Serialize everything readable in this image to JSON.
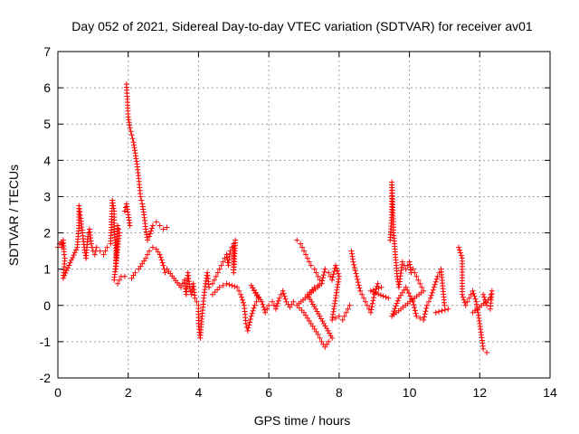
{
  "chart_data": {
    "type": "scatter",
    "title": "Day 052 of 2021, Sidereal Day-to-day VTEC variation (SDTVAR) for receiver av01",
    "xlabel": "GPS time / hours",
    "ylabel": "SDTVAR / TECUs",
    "xlim": [
      0,
      14
    ],
    "ylim": [
      -2,
      7
    ],
    "x_ticks": [
      0,
      2,
      4,
      6,
      8,
      10,
      12,
      14
    ],
    "y_ticks": [
      -2,
      -1,
      0,
      1,
      2,
      3,
      4,
      5,
      6,
      7
    ],
    "grid": true,
    "marker": "+",
    "color": "#ff0000",
    "series": [
      {
        "name": "SDTVAR",
        "points": [
          [
            0.0,
            1.6
          ],
          [
            0.05,
            1.7
          ],
          [
            0.1,
            1.75
          ],
          [
            0.12,
            1.6
          ],
          [
            0.15,
            1.8
          ],
          [
            0.18,
            1.4
          ],
          [
            0.2,
            1.3
          ],
          [
            0.15,
            0.75
          ],
          [
            0.55,
            1.6
          ],
          [
            0.6,
            2.2
          ],
          [
            0.6,
            2.75
          ],
          [
            0.65,
            2.4
          ],
          [
            0.7,
            2.0
          ],
          [
            0.75,
            1.6
          ],
          [
            0.8,
            1.3
          ],
          [
            0.85,
            1.9
          ],
          [
            0.9,
            2.1
          ],
          [
            0.95,
            1.7
          ],
          [
            1.0,
            1.5
          ],
          [
            1.05,
            1.4
          ],
          [
            1.1,
            1.6
          ],
          [
            1.2,
            1.5
          ],
          [
            1.3,
            1.4
          ],
          [
            1.4,
            1.6
          ],
          [
            1.5,
            1.7
          ],
          [
            1.55,
            2.9
          ],
          [
            1.6,
            2.6
          ],
          [
            1.6,
            2.1
          ],
          [
            1.65,
            1.5
          ],
          [
            1.65,
            1.0
          ],
          [
            1.7,
            2.2
          ],
          [
            1.75,
            2.0
          ],
          [
            1.6,
            0.7
          ],
          [
            1.7,
            0.6
          ],
          [
            1.8,
            0.8
          ],
          [
            1.9,
            0.8
          ],
          [
            1.9,
            2.6
          ],
          [
            1.95,
            2.8
          ],
          [
            2.0,
            2.5
          ],
          [
            2.05,
            2.2
          ],
          [
            1.95,
            6.1
          ],
          [
            1.98,
            5.6
          ],
          [
            2.0,
            5.2
          ],
          [
            2.05,
            4.9
          ],
          [
            2.1,
            4.7
          ],
          [
            2.15,
            4.5
          ],
          [
            2.2,
            4.2
          ],
          [
            2.25,
            3.9
          ],
          [
            2.3,
            3.5
          ],
          [
            2.35,
            3.0
          ],
          [
            2.4,
            2.8
          ],
          [
            2.45,
            2.5
          ],
          [
            2.5,
            2.1
          ],
          [
            2.55,
            1.8
          ],
          [
            2.6,
            1.9
          ],
          [
            2.7,
            2.2
          ],
          [
            2.8,
            2.3
          ],
          [
            2.9,
            2.2
          ],
          [
            3.0,
            2.1
          ],
          [
            3.1,
            2.15
          ],
          [
            2.1,
            0.75
          ],
          [
            2.2,
            0.9
          ],
          [
            2.3,
            1.0
          ],
          [
            2.4,
            1.15
          ],
          [
            2.5,
            1.3
          ],
          [
            2.6,
            1.5
          ],
          [
            2.7,
            1.6
          ],
          [
            2.8,
            1.55
          ],
          [
            2.9,
            1.4
          ],
          [
            3.0,
            1.1
          ],
          [
            3.05,
            0.9
          ],
          [
            3.1,
            1.0
          ],
          [
            3.5,
            0.5
          ],
          [
            3.6,
            0.7
          ],
          [
            3.65,
            0.3
          ],
          [
            3.7,
            0.9
          ],
          [
            3.75,
            0.5
          ],
          [
            3.8,
            0.3
          ],
          [
            3.85,
            0.6
          ],
          [
            3.9,
            0.2
          ],
          [
            4.0,
            0.0
          ],
          [
            4.0,
            -0.5
          ],
          [
            4.05,
            -0.9
          ],
          [
            4.1,
            -0.3
          ],
          [
            4.15,
            0.2
          ],
          [
            4.2,
            0.6
          ],
          [
            4.25,
            0.9
          ],
          [
            4.3,
            0.5
          ],
          [
            4.4,
            0.6
          ],
          [
            4.5,
            0.8
          ],
          [
            4.6,
            1.0
          ],
          [
            4.7,
            1.2
          ],
          [
            4.8,
            1.4
          ],
          [
            4.85,
            1.1
          ],
          [
            4.9,
            1.5
          ],
          [
            5.0,
            1.7
          ],
          [
            5.0,
            0.9
          ],
          [
            5.05,
            1.8
          ],
          [
            4.4,
            0.3
          ],
          [
            4.6,
            0.5
          ],
          [
            4.8,
            0.6
          ],
          [
            5.1,
            0.5
          ],
          [
            5.2,
            0.3
          ],
          [
            5.3,
            0.0
          ],
          [
            5.35,
            -0.5
          ],
          [
            5.4,
            -0.7
          ],
          [
            5.5,
            -0.3
          ],
          [
            5.6,
            0.0
          ],
          [
            5.7,
            0.2
          ],
          [
            5.5,
            0.55
          ],
          [
            5.8,
            0.1
          ],
          [
            5.9,
            -0.2
          ],
          [
            6.0,
            0.0
          ],
          [
            6.1,
            0.1
          ],
          [
            6.2,
            -0.1
          ],
          [
            6.3,
            0.2
          ],
          [
            6.4,
            0.4
          ],
          [
            6.5,
            0.1
          ],
          [
            6.6,
            -0.05
          ],
          [
            6.7,
            0.1
          ],
          [
            6.8,
            1.8
          ],
          [
            6.9,
            1.7
          ],
          [
            7.0,
            1.5
          ],
          [
            7.1,
            1.3
          ],
          [
            7.2,
            1.1
          ],
          [
            7.3,
            1.0
          ],
          [
            7.4,
            0.8
          ],
          [
            7.5,
            0.6
          ],
          [
            6.8,
            0.0
          ],
          [
            7.0,
            -0.2
          ],
          [
            7.2,
            -0.5
          ],
          [
            7.4,
            -0.8
          ],
          [
            7.5,
            -1.0
          ],
          [
            7.6,
            -1.15
          ],
          [
            7.7,
            -1.0
          ],
          [
            7.8,
            -0.9
          ],
          [
            7.1,
            0.3
          ],
          [
            7.3,
            0.5
          ],
          [
            7.5,
            0.6
          ],
          [
            7.6,
            1.0
          ],
          [
            7.7,
            0.9
          ],
          [
            7.8,
            0.7
          ],
          [
            7.9,
            1.1
          ],
          [
            8.0,
            0.8
          ],
          [
            7.8,
            -0.4
          ],
          [
            8.0,
            -0.3
          ],
          [
            8.1,
            -0.4
          ],
          [
            8.2,
            -0.2
          ],
          [
            8.3,
            0.0
          ],
          [
            8.35,
            1.5
          ],
          [
            8.4,
            1.2
          ],
          [
            8.5,
            0.8
          ],
          [
            8.6,
            0.4
          ],
          [
            8.7,
            0.2
          ],
          [
            8.8,
            0.0
          ],
          [
            8.9,
            -0.2
          ],
          [
            9.0,
            0.3
          ],
          [
            9.1,
            0.6
          ],
          [
            9.2,
            0.5
          ],
          [
            8.9,
            0.4
          ],
          [
            9.4,
            0.2
          ],
          [
            9.45,
            1.8
          ],
          [
            9.5,
            2.5
          ],
          [
            9.5,
            3.4
          ],
          [
            9.55,
            2.0
          ],
          [
            9.6,
            1.4
          ],
          [
            9.65,
            0.8
          ],
          [
            9.7,
            0.5
          ],
          [
            9.8,
            1.2
          ],
          [
            9.9,
            1.0
          ],
          [
            10.0,
            1.2
          ],
          [
            10.05,
            0.9
          ],
          [
            10.1,
            1.0
          ],
          [
            10.2,
            0.8
          ],
          [
            10.3,
            0.6
          ],
          [
            10.4,
            0.4
          ],
          [
            9.5,
            -0.3
          ],
          [
            9.7,
            0.2
          ],
          [
            9.9,
            0.5
          ],
          [
            10.1,
            0.1
          ],
          [
            10.2,
            -0.3
          ],
          [
            10.4,
            -0.4
          ],
          [
            10.5,
            0.0
          ],
          [
            10.6,
            0.2
          ],
          [
            10.7,
            0.5
          ],
          [
            10.8,
            0.8
          ],
          [
            10.9,
            1.0
          ],
          [
            11.0,
            0.0
          ],
          [
            11.1,
            -0.1
          ],
          [
            10.75,
            -0.2
          ],
          [
            11.4,
            1.6
          ],
          [
            11.5,
            1.3
          ],
          [
            11.5,
            0.3
          ],
          [
            11.6,
            0.0
          ],
          [
            11.7,
            0.2
          ],
          [
            11.8,
            0.4
          ],
          [
            11.9,
            0.1
          ],
          [
            12.0,
            -0.5
          ],
          [
            12.1,
            -1.2
          ],
          [
            12.2,
            -1.3
          ],
          [
            12.1,
            0.3
          ],
          [
            12.2,
            0.0
          ],
          [
            12.3,
            -0.1
          ],
          [
            12.35,
            0.4
          ],
          [
            12.3,
            0.2
          ],
          [
            11.8,
            -0.2
          ]
        ]
      }
    ]
  }
}
